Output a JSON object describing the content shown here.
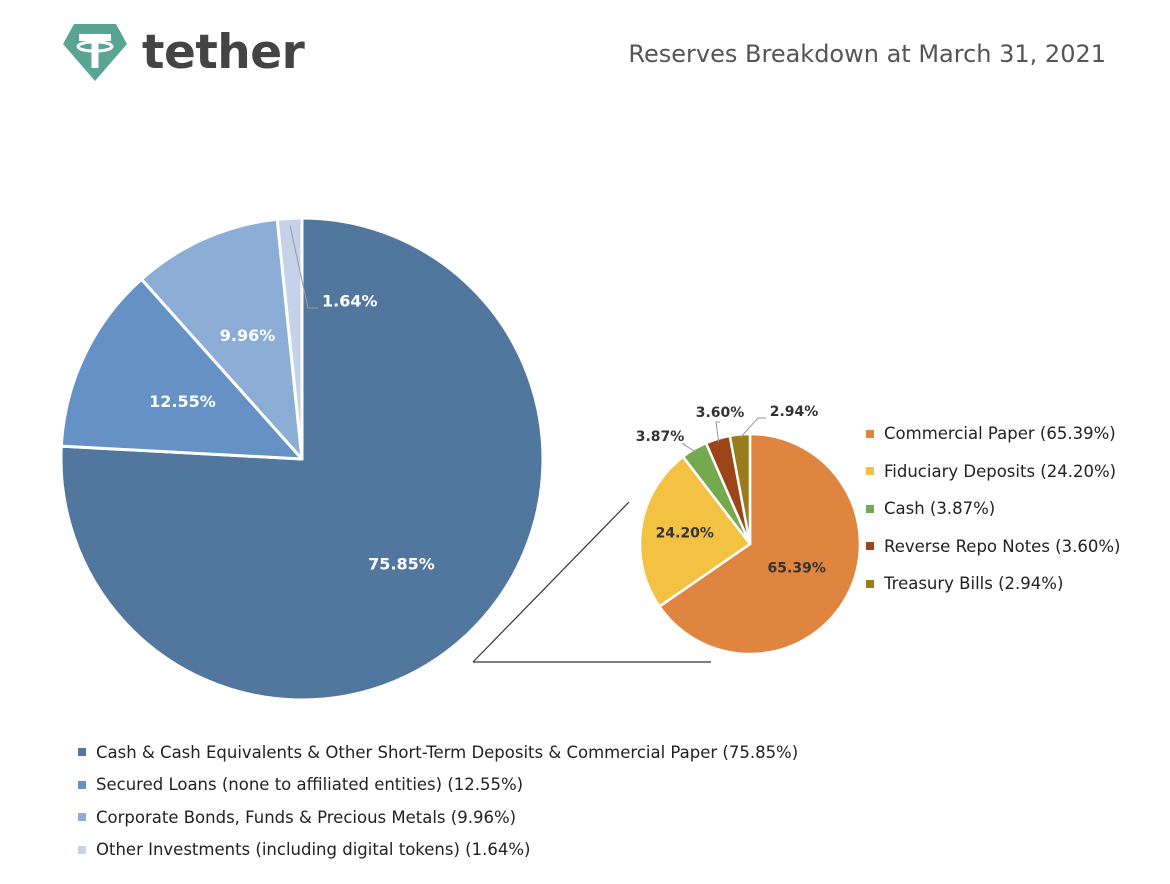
{
  "header": {
    "logo_text": "tether",
    "title": "Reserves Breakdown at March 31, 2021"
  },
  "colors": {
    "logo": "#59a493",
    "main": [
      "#52779f",
      "#6591c4",
      "#8badd6",
      "#c4d3ea"
    ],
    "sub": [
      "#e08540",
      "#f4c242",
      "#74a94e",
      "#9c4519",
      "#9a7b1b"
    ]
  },
  "chart_data": [
    {
      "type": "pie",
      "categories": [
        "Cash & Cash Equivalents & Other Short-Term Deposits & Commercial Paper (75.85%)",
        "Secured Loans (none to affiliated entities) (12.55%)",
        "Corporate Bonds, Funds & Precious Metals (9.96%)",
        "Other Investments (including digital tokens) (1.64%)"
      ],
      "values": [
        75.85,
        12.55,
        9.96,
        1.64
      ],
      "data_labels": [
        "75.85%",
        "12.55%",
        "9.96%",
        "1.64%"
      ],
      "legend_position": "bottom"
    },
    {
      "type": "pie",
      "categories": [
        "Commercial Paper (65.39%)",
        "Fiduciary Deposits (24.20%)",
        "Cash (3.87%)",
        "Reverse Repo Notes (3.60%)",
        "Treasury Bills (2.94%)"
      ],
      "values": [
        65.39,
        24.2,
        3.87,
        3.6,
        2.94
      ],
      "data_labels": [
        "65.39%",
        "24.20%",
        "3.87%",
        "3.60%",
        "2.94%"
      ],
      "legend_position": "right"
    }
  ]
}
